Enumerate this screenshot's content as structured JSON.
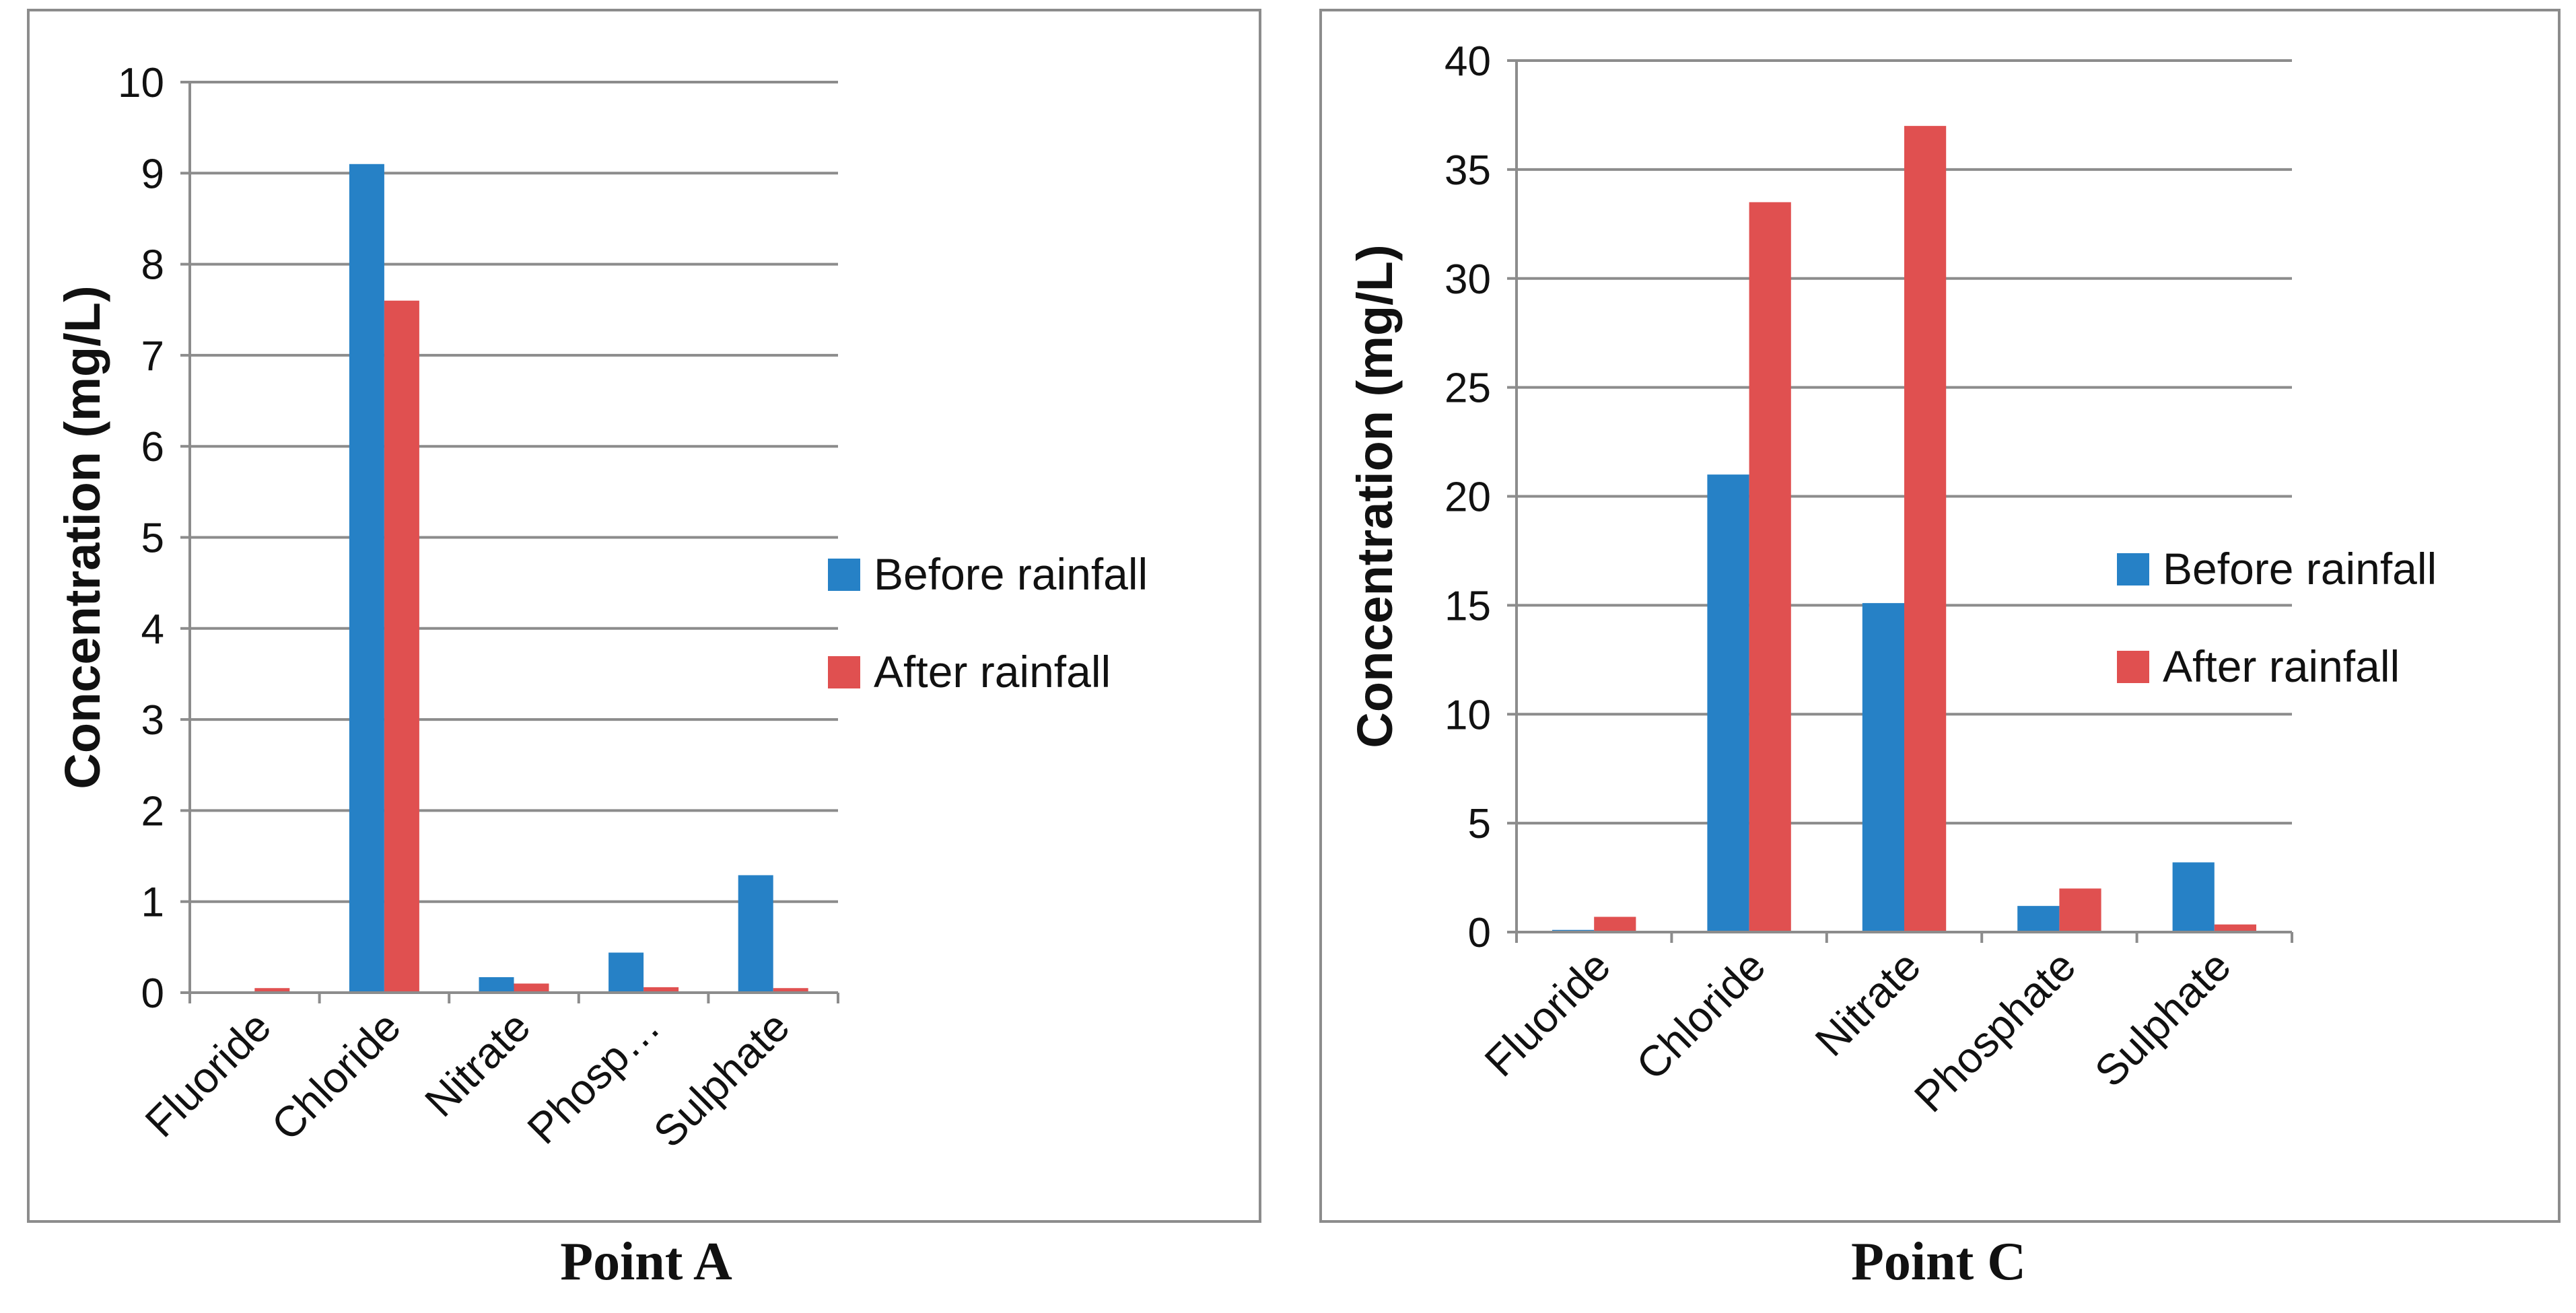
{
  "colors": {
    "before": "#2681c6",
    "after": "#e05050",
    "grid": "#8c8c8c",
    "frame": "#8c8c8c"
  },
  "chart_data": [
    {
      "type": "bar",
      "caption": "Point A",
      "ylabel": "Concentration (mg/L)",
      "xlabel": "",
      "categories": [
        "Fluoride",
        "Chloride",
        "Nitrate",
        "Phosp…",
        "Sulphate"
      ],
      "ylim": [
        0,
        10
      ],
      "yticks": [
        0,
        1,
        2,
        3,
        4,
        5,
        6,
        7,
        8,
        9,
        10
      ],
      "legend_position": "right",
      "series": [
        {
          "name": "Before rainfall",
          "values": [
            0.0,
            9.1,
            0.17,
            0.44,
            1.29
          ]
        },
        {
          "name": "After rainfall",
          "values": [
            0.05,
            7.6,
            0.1,
            0.06,
            0.05
          ]
        }
      ]
    },
    {
      "type": "bar",
      "caption": "Point C",
      "ylabel": "Concentration (mg/L)",
      "xlabel": "",
      "categories": [
        "Fluoride",
        "Chloride",
        "Nitrate",
        "Phosphate",
        "Sulphate"
      ],
      "ylim": [
        0,
        40
      ],
      "yticks": [
        0,
        5,
        10,
        15,
        20,
        25,
        30,
        35,
        40
      ],
      "legend_position": "right",
      "series": [
        {
          "name": "Before rainfall",
          "values": [
            0.1,
            21.0,
            15.1,
            1.2,
            3.2
          ]
        },
        {
          "name": "After rainfall",
          "values": [
            0.7,
            33.5,
            37.0,
            2.0,
            0.35
          ]
        }
      ]
    }
  ]
}
